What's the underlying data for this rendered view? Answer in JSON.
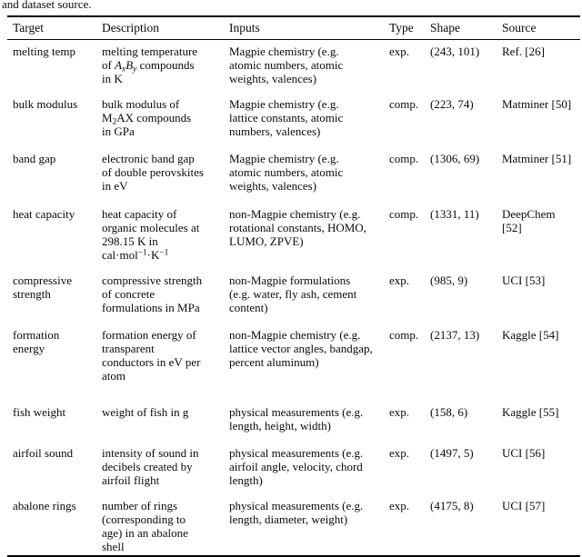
{
  "caption_tail": "and dataset source.",
  "table": {
    "headers": {
      "target": "Target",
      "description": "Description",
      "inputs": "Inputs",
      "type": "Type",
      "shape": "Shape",
      "source": "Source"
    },
    "rows": [
      {
        "target": [
          "melting temp"
        ],
        "description": [
          "melting temperature",
          [
            {
              "t": "of "
            },
            {
              "t": "A",
              "s": "mi"
            },
            {
              "t": "x",
              "s": "msub"
            },
            {
              "t": "B",
              "s": "mi"
            },
            {
              "t": "y",
              "s": "msub"
            },
            {
              "t": " compounds"
            }
          ],
          "in K"
        ],
        "inputs": [
          "Magpie chemistry (e.g.",
          "atomic numbers, atomic",
          "weights, valences)"
        ],
        "type": "exp.",
        "shape": "(243, 101)",
        "source": "Ref. [26]"
      },
      {
        "target": [
          "bulk modulus"
        ],
        "description": [
          "bulk modulus of",
          [
            {
              "t": "M"
            },
            {
              "t": "2",
              "s": "sub"
            },
            {
              "t": "AX compounds"
            }
          ],
          "in GPa"
        ],
        "inputs": [
          "Magpie chemistry (e.g.",
          "lattice constants, atomic",
          "numbers, valences)"
        ],
        "type": "comp.",
        "shape": "(223, 74)",
        "source": "Matminer [50]"
      },
      {
        "target": [
          "band gap"
        ],
        "description": [
          "electronic band gap",
          "of double perovskites",
          "in eV"
        ],
        "inputs": [
          "Magpie chemistry (e.g.",
          "atomic numbers, atomic",
          "weights, valences)"
        ],
        "type": "comp.",
        "shape": "(1306, 69)",
        "source": "Matminer [51]"
      },
      {
        "target": [
          "heat capacity"
        ],
        "description": [
          "heat capacity of",
          "organic molecules at",
          "298.15 K in",
          [
            {
              "t": "cal·mol"
            },
            {
              "t": "−1",
              "s": "sup"
            },
            {
              "t": "·K"
            },
            {
              "t": "−1",
              "s": "sup"
            }
          ]
        ],
        "inputs": [
          "non-Magpie chemistry (e.g.",
          "rotational constants, HOMO,",
          "LUMO, ZPVE)"
        ],
        "type": "comp.",
        "shape": "(1331, 11)",
        "source": "DeepChem [52]"
      },
      {
        "target": [
          "compressive",
          "strength"
        ],
        "description": [
          "compressive strength",
          "of concrete",
          "formulations in MPa"
        ],
        "inputs": [
          "non-Magpie formulations",
          "(e.g. water, fly ash, cement",
          "content)"
        ],
        "type": "exp.",
        "shape": "(985, 9)",
        "source": "UCI [53]"
      },
      {
        "target": [
          "formation",
          "energy"
        ],
        "description": [
          "formation energy of",
          "transparent",
          "conductors in eV per",
          "atom"
        ],
        "inputs": [
          "non-Magpie chemistry (e.g.",
          "lattice vector angles, bandgap,",
          "percent aluminum)"
        ],
        "type": "comp.",
        "shape": "(2137, 13)",
        "source": "Kaggle [54]"
      },
      {
        "target": [
          "fish weight"
        ],
        "description": [
          "weight of fish in g"
        ],
        "inputs": [
          "physical measurements (e.g.",
          "length, height, width)"
        ],
        "type": "exp.",
        "shape": "(158, 6)",
        "source": "Kaggle [55]"
      },
      {
        "target": [
          "airfoil sound"
        ],
        "description": [
          "intensity of sound in",
          "decibels created by",
          "airfoil flight"
        ],
        "inputs": [
          "physical measurements (e.g.",
          "airfoil angle, velocity, chord",
          "length)"
        ],
        "type": "exp.",
        "shape": "(1497, 5)",
        "source": "UCI [56]"
      },
      {
        "target": [
          "abalone rings"
        ],
        "description": [
          "number of rings",
          "(corresponding to",
          "age) in an abalone",
          "shell"
        ],
        "inputs": [
          "physical measurements (e.g.",
          "length, diameter, weight)"
        ],
        "type": "exp.",
        "shape": "(4175, 8)",
        "source": "UCI [57]"
      }
    ]
  }
}
